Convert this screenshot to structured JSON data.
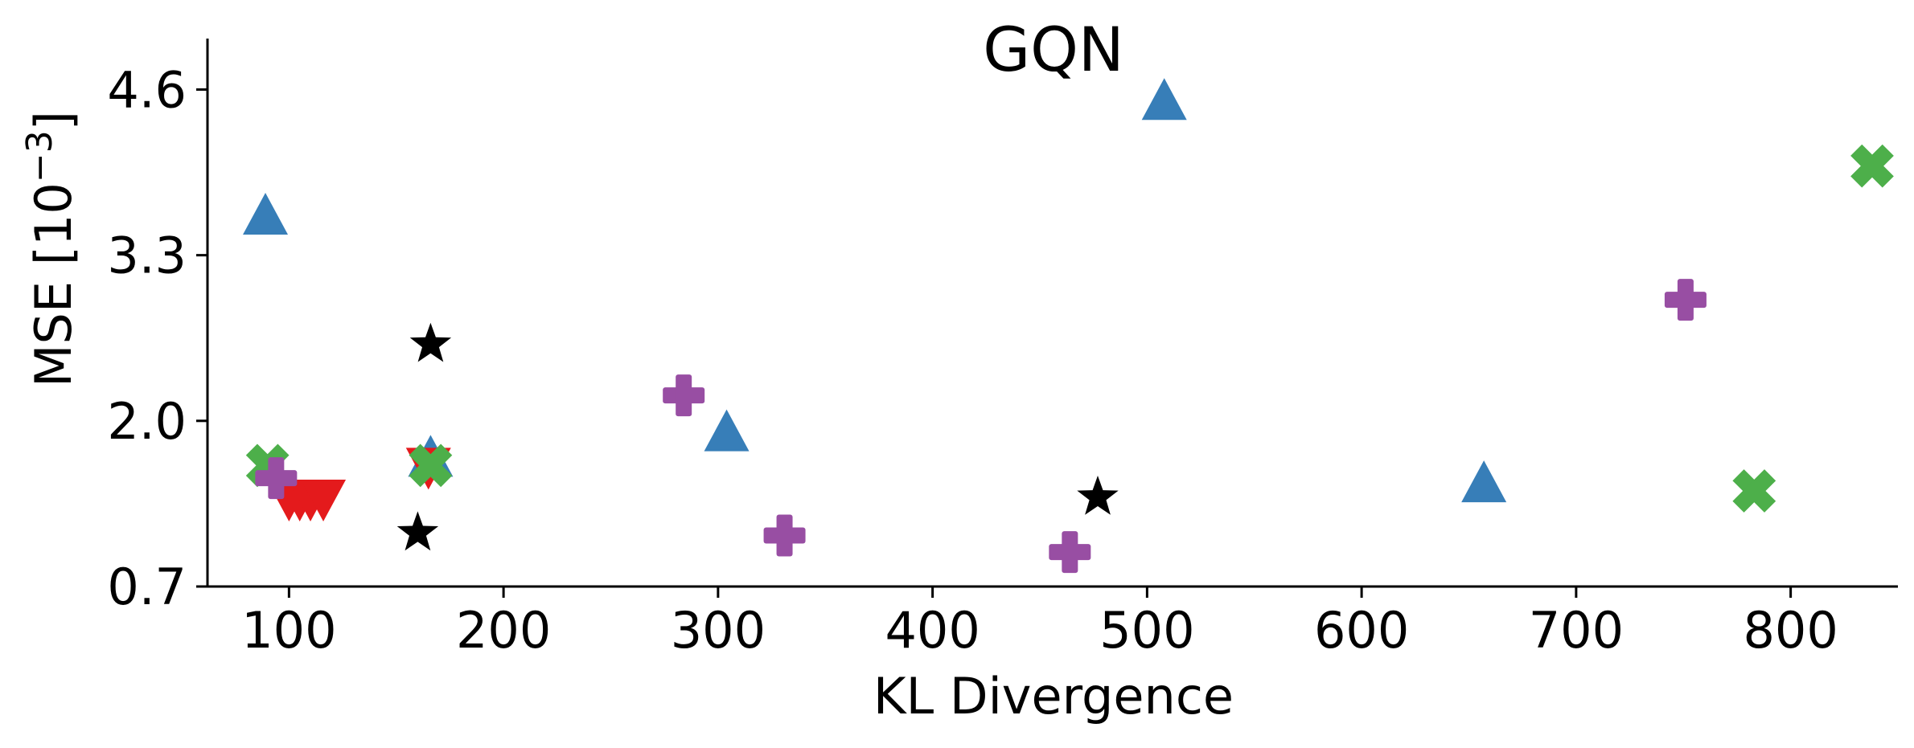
{
  "chart_data": {
    "type": "scatter",
    "title": "GQN",
    "xlabel": "KL Divergence",
    "ylabel": "MSE [10",
    "ylabel_exponent": "−3",
    "ylabel_close": "]",
    "xlim": [
      62,
      850
    ],
    "ylim": [
      0.7,
      5.0
    ],
    "xticks": [
      100,
      200,
      300,
      400,
      500,
      600,
      700,
      800
    ],
    "yticks": [
      0.7,
      2.0,
      3.3,
      4.6
    ],
    "ytick_labels": [
      "0.7",
      "2.0",
      "3.3",
      "4.6"
    ],
    "grid": false,
    "series": [
      {
        "marker": "triangle-up",
        "color": "#377eb8",
        "points": [
          [
            89,
            3.6
          ],
          [
            166,
            1.7
          ],
          [
            304,
            1.9
          ],
          [
            508,
            4.5
          ],
          [
            657,
            1.5
          ]
        ]
      },
      {
        "marker": "triangle-down",
        "color": "#e41a1c",
        "points": [
          [
            100,
            1.4
          ],
          [
            105,
            1.4
          ],
          [
            110,
            1.4
          ],
          [
            116,
            1.4
          ],
          [
            165,
            1.65
          ]
        ]
      },
      {
        "marker": "x-filled",
        "color": "#4daf4a",
        "points": [
          [
            90,
            1.65
          ],
          [
            166,
            1.65
          ],
          [
            783,
            1.45
          ],
          [
            838,
            4.0
          ]
        ]
      },
      {
        "marker": "plus-filled",
        "color": "#984ea3",
        "points": [
          [
            94,
            1.55
          ],
          [
            284,
            2.2
          ],
          [
            331,
            1.1
          ],
          [
            464,
            0.97
          ],
          [
            751,
            2.95
          ]
        ]
      },
      {
        "marker": "star",
        "color": "#000000",
        "points": [
          [
            160,
            1.12
          ],
          [
            166,
            2.6
          ],
          [
            477,
            1.4
          ]
        ]
      }
    ]
  }
}
